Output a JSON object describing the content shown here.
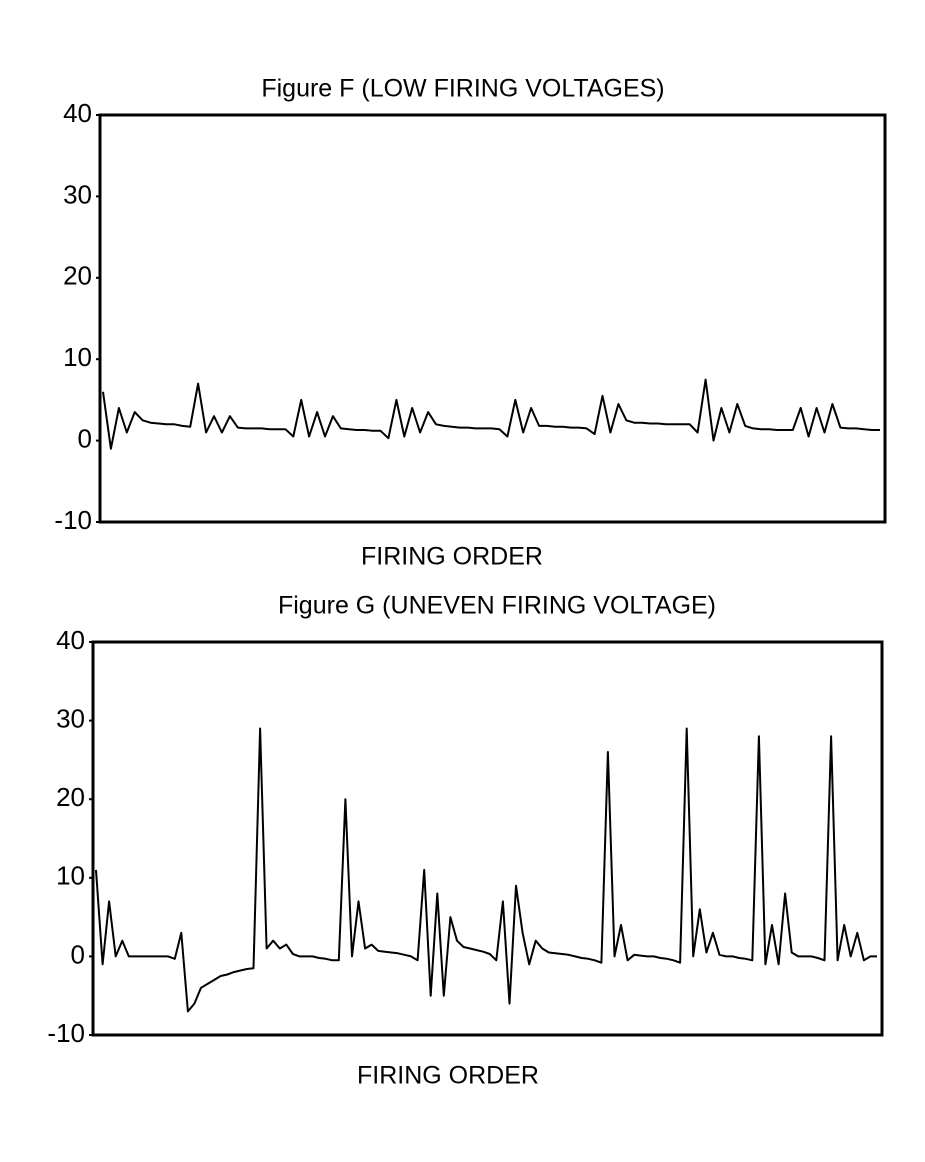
{
  "chart_data": [
    {
      "type": "line",
      "title": "Figure F (LOW FIRING VOLTAGES)",
      "x_label": "FIRING ORDER",
      "color": "#000000",
      "ylim": [
        -10,
        40
      ],
      "yticks": [
        -10,
        0,
        10,
        20,
        30,
        40
      ],
      "values": [
        6,
        -1,
        4,
        1,
        3.5,
        2.5,
        2.2,
        2.1,
        2,
        2,
        1.8,
        1.7,
        7,
        1,
        3,
        1,
        3,
        1.6,
        1.5,
        1.5,
        1.5,
        1.4,
        1.4,
        1.4,
        0.5,
        5,
        0.5,
        3.5,
        0.5,
        3,
        1.5,
        1.4,
        1.3,
        1.3,
        1.2,
        1.2,
        0.3,
        5,
        0.5,
        4,
        1,
        3.5,
        2,
        1.8,
        1.7,
        1.6,
        1.6,
        1.5,
        1.5,
        1.5,
        1.4,
        0.5,
        5,
        1,
        4,
        1.8,
        1.8,
        1.7,
        1.7,
        1.6,
        1.6,
        1.5,
        0.8,
        5.5,
        1,
        4.5,
        2.5,
        2.2,
        2.2,
        2.1,
        2.1,
        2,
        2,
        2,
        2,
        1,
        7.5,
        0,
        4,
        1,
        4.5,
        1.8,
        1.5,
        1.4,
        1.4,
        1.3,
        1.3,
        1.3,
        4,
        0.5,
        4,
        1,
        4.5,
        1.6,
        1.5,
        1.5,
        1.4,
        1.3,
        1.3
      ]
    },
    {
      "type": "line",
      "title": "Figure G (UNEVEN FIRING VOLTAGE)",
      "x_label": "FIRING ORDER",
      "color": "#000000",
      "ylim": [
        -10,
        40
      ],
      "yticks": [
        -10,
        0,
        10,
        20,
        30,
        40
      ],
      "values": [
        11,
        -1,
        7,
        0,
        2,
        0,
        0,
        0,
        0,
        0,
        0,
        0,
        -0.3,
        3,
        -7,
        -6,
        -4,
        -3.5,
        -3,
        -2.5,
        -2.3,
        -2,
        -1.8,
        -1.6,
        -1.5,
        29,
        1,
        2,
        1,
        1.5,
        0.3,
        0,
        0,
        0,
        -0.2,
        -0.3,
        -0.5,
        -0.5,
        20,
        0,
        7,
        1,
        1.5,
        0.7,
        0.6,
        0.5,
        0.4,
        0.2,
        0,
        -0.5,
        11,
        -5,
        8,
        -5,
        5,
        2,
        1.2,
        1,
        0.8,
        0.6,
        0.3,
        -0.5,
        7,
        -6,
        9,
        3,
        -1,
        2,
        1,
        0.5,
        0.4,
        0.3,
        0.2,
        0,
        -0.2,
        -0.3,
        -0.5,
        -0.8,
        26,
        0,
        4,
        -0.5,
        0.2,
        0.1,
        0,
        0,
        -0.2,
        -0.3,
        -0.5,
        -0.8,
        29,
        0,
        6,
        0.5,
        3,
        0.2,
        0,
        0,
        -0.2,
        -0.3,
        -0.5,
        28,
        -1,
        4,
        -1,
        8,
        0.5,
        0,
        0,
        0,
        -0.2,
        -0.5,
        28,
        -0.5,
        4,
        0,
        3,
        -0.5,
        0,
        0
      ]
    }
  ]
}
